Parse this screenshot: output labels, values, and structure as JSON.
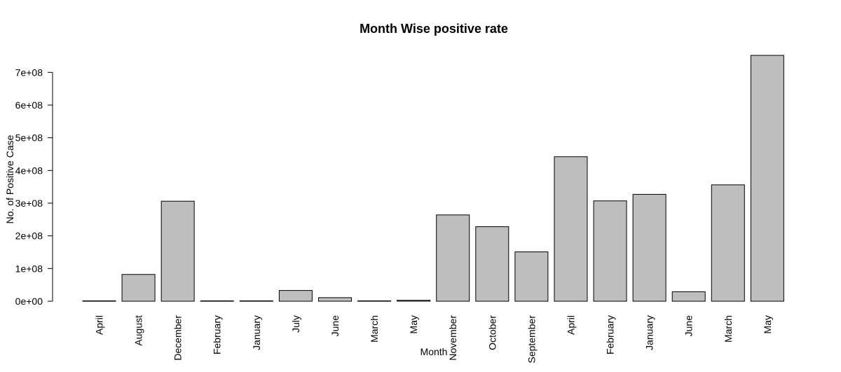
{
  "chart_data": {
    "type": "bar",
    "title": "Month Wise positive rate",
    "xlabel": "Month",
    "ylabel": "No. of Positive Case",
    "categories": [
      "April",
      "August",
      "December",
      "February",
      "January",
      "July",
      "June",
      "March",
      "May",
      "November",
      "October",
      "September",
      "April",
      "February",
      "January",
      "June",
      "March",
      "May"
    ],
    "values": [
      500000,
      82000000,
      306000000,
      500000,
      500000,
      33000000,
      11000000,
      500000,
      3000000,
      264000000,
      228000000,
      151000000,
      442000000,
      307000000,
      327000000,
      29000000,
      356000000,
      752000000
    ],
    "yticks": [
      0,
      100000000,
      200000000,
      300000000,
      400000000,
      500000000,
      600000000,
      700000000
    ],
    "ytick_labels": [
      "0e+00",
      "1e+08",
      "2e+08",
      "3e+08",
      "4e+08",
      "5e+08",
      "6e+08",
      "7e+08"
    ],
    "ylim": [
      0,
      752000000
    ],
    "grid": false,
    "colors": {
      "bar": "#bebebe",
      "stroke": "#000000"
    }
  }
}
